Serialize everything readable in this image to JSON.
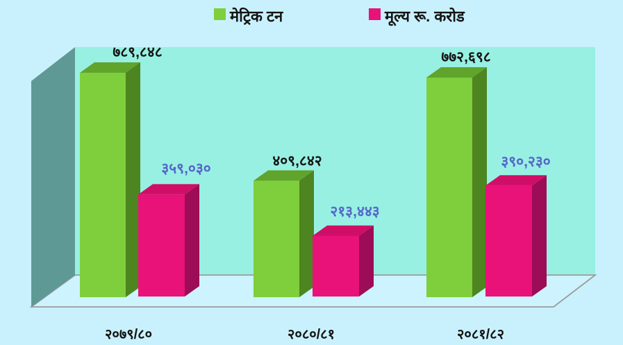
{
  "chart_data": {
    "type": "bar",
    "variant": "3d-column-grouped",
    "title": "",
    "xlabel": "",
    "ylabel": "",
    "ylim": [
      0,
      789848
    ],
    "grid": false,
    "legend_position": "top-center",
    "categories": [
      "२०७९/८०",
      "२०८०/८१",
      "२०८१/८२"
    ],
    "series": [
      {
        "name": "मेट्रिक टन",
        "values": [
          789848,
          409842,
          772698
        ],
        "labels": [
          "७८९,८४८",
          "४०९,८४२",
          "७७२,६९८"
        ],
        "label_color": "#141414",
        "color": "#7ecf3b"
      },
      {
        "name": "मूल्य रू. करोड",
        "values": [
          359030,
          213443,
          390230
        ],
        "labels": [
          "३५९,०३०",
          "२१३,४४३",
          "३९०,२३०"
        ],
        "label_color": "#5565c8",
        "color": "#e81279"
      }
    ]
  },
  "colors": {
    "background": "#c9f1fd",
    "back_wall": "#98f0e3",
    "side_wall": "#5f9995",
    "floor_fill": "#ccf3fe",
    "floor_stroke": "#9b9b99",
    "series": [
      {
        "front": "#7ecf3b",
        "top": "#60a42c",
        "side": "#4d8520"
      },
      {
        "front": "#e81279",
        "top": "#d00e68",
        "side": "#9d0c56"
      }
    ]
  }
}
